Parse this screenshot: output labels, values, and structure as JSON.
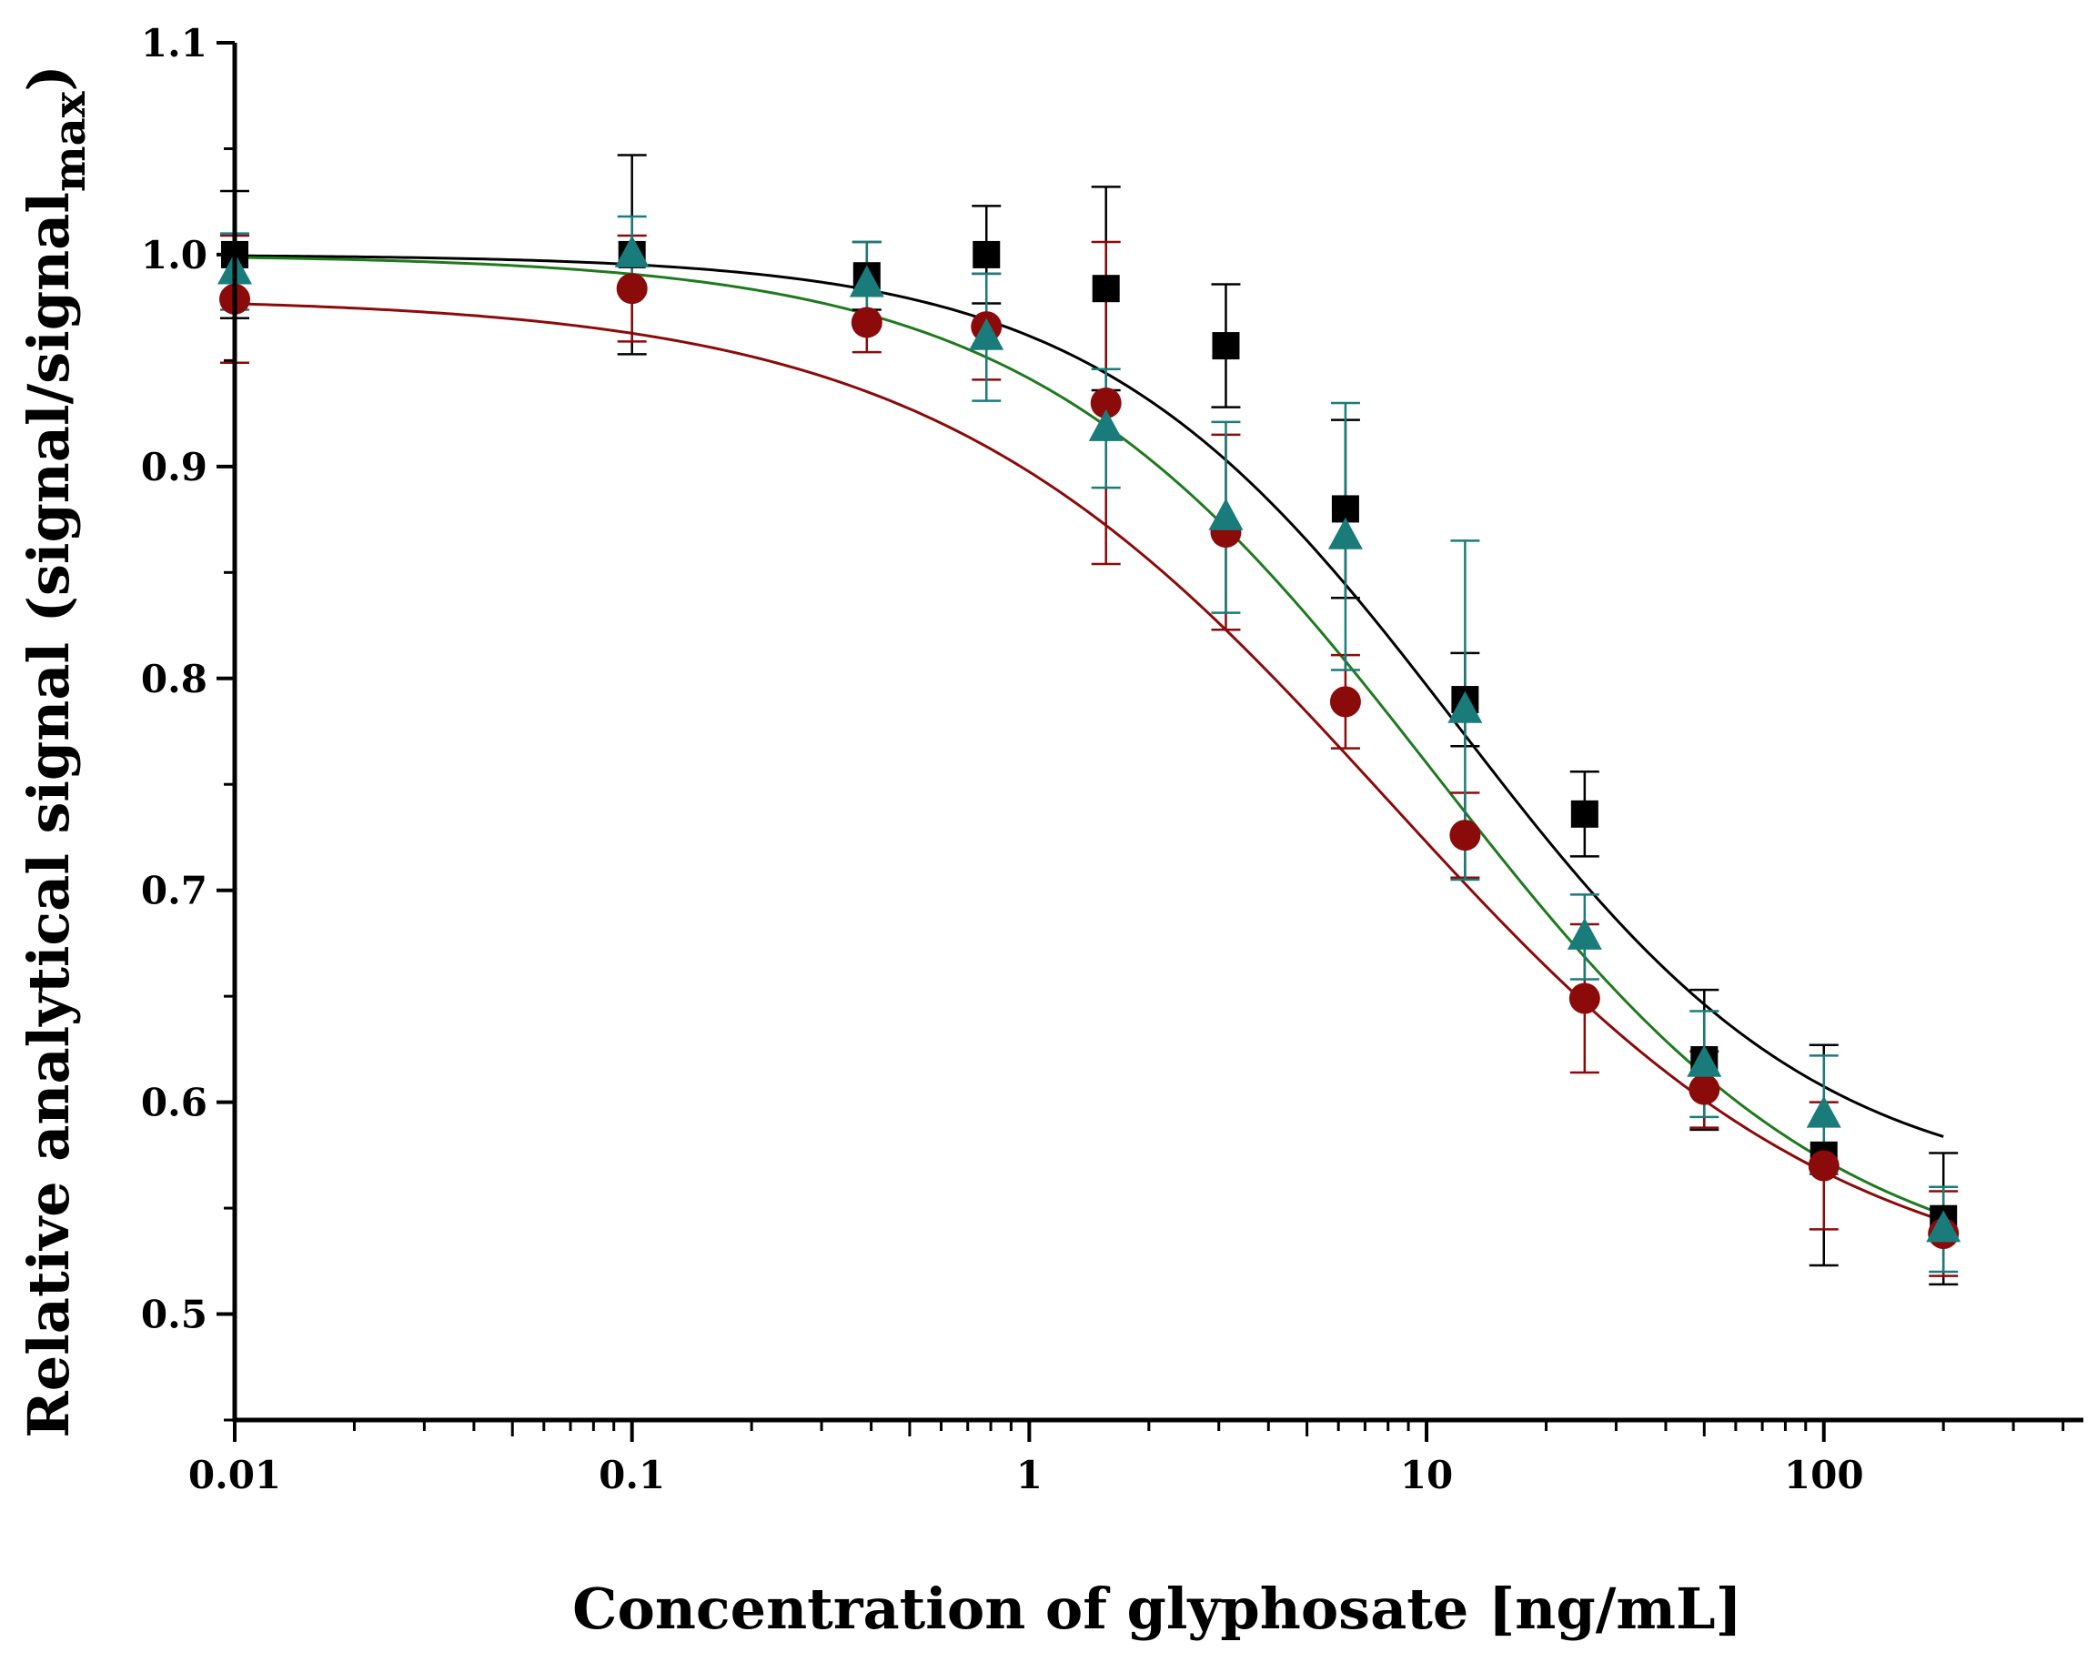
{
  "chart_data": {
    "type": "scatter",
    "title": "",
    "xlabel": "Concentration of glyphosate [ng/mL]",
    "ylabel_main": "Relative analytical signal (signal/signal",
    "ylabel_sub": "max",
    "ylabel_close": ")",
    "xscale": "log",
    "xlim": [
      0.01,
      450
    ],
    "ylim": [
      0.45,
      1.1
    ],
    "xticks": [
      {
        "value": 0.01,
        "label": "0.01"
      },
      {
        "value": 0.1,
        "label": "0.1"
      },
      {
        "value": 1,
        "label": "1"
      },
      {
        "value": 10,
        "label": "10"
      },
      {
        "value": 100,
        "label": "100"
      }
    ],
    "yticks": [
      {
        "value": 0.5,
        "label": "0.5"
      },
      {
        "value": 0.6,
        "label": "0.6"
      },
      {
        "value": 0.7,
        "label": "0.7"
      },
      {
        "value": 0.8,
        "label": "0.8"
      },
      {
        "value": 0.9,
        "label": "0.9"
      },
      {
        "value": 1.0,
        "label": "1.0"
      },
      {
        "value": 1.1,
        "label": "1.1"
      }
    ],
    "series": [
      {
        "name": "squares",
        "marker": "square",
        "color": "#000000",
        "fit_color": "#000000",
        "x": [
          0.01,
          0.1,
          0.39,
          0.78,
          1.56,
          3.125,
          6.25,
          12.5,
          25,
          50,
          100,
          200
        ],
        "y": [
          1.0,
          1.0,
          0.99,
          1.0,
          0.984,
          0.957,
          0.88,
          0.79,
          0.736,
          0.62,
          0.575,
          0.545
        ],
        "err": [
          0.03,
          0.047,
          0.016,
          0.023,
          0.048,
          0.029,
          0.042,
          0.022,
          0.02,
          0.033,
          0.052,
          0.031
        ],
        "fit": {
          "A1": 1.0,
          "A2": 0.555,
          "x0": 12.0,
          "p": 0.95
        }
      },
      {
        "name": "circles",
        "marker": "circle",
        "color": "#8b0a0a",
        "fit_color": "#8b0a0a",
        "x": [
          0.01,
          0.1,
          0.39,
          0.78,
          1.56,
          3.125,
          6.25,
          12.5,
          25,
          50,
          100,
          200
        ],
        "y": [
          0.979,
          0.984,
          0.968,
          0.966,
          0.93,
          0.869,
          0.789,
          0.726,
          0.649,
          0.606,
          0.57,
          0.538
        ],
        "err": [
          0.03,
          0.025,
          0.014,
          0.025,
          0.076,
          0.046,
          0.022,
          0.02,
          0.035,
          0.018,
          0.03,
          0.02
        ],
        "fit": {
          "A1": 0.98,
          "A2": 0.505,
          "x0": 8.0,
          "p": 0.75
        }
      },
      {
        "name": "triangles",
        "marker": "triangle",
        "color": "#1a7b7b",
        "fit_color": "#1f7a1f",
        "x": [
          0.01,
          0.1,
          0.39,
          0.78,
          1.56,
          3.125,
          6.25,
          12.5,
          25,
          50,
          100,
          200
        ],
        "y": [
          0.992,
          1.0,
          0.986,
          0.961,
          0.918,
          0.876,
          0.867,
          0.785,
          0.678,
          0.618,
          0.594,
          0.54
        ],
        "err": [
          0.018,
          0.018,
          0.02,
          0.03,
          0.028,
          0.045,
          0.063,
          0.08,
          0.02,
          0.025,
          0.028,
          0.02
        ],
        "fit": {
          "A1": 1.0,
          "A2": 0.51,
          "x0": 10.5,
          "p": 0.85
        }
      }
    ]
  }
}
